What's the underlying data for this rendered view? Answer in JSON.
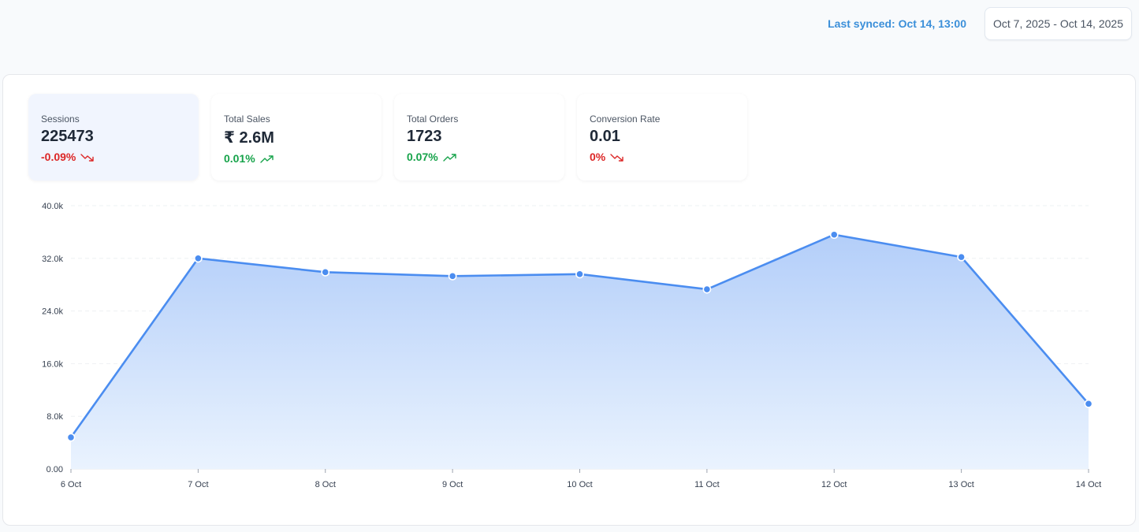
{
  "header": {
    "last_synced": "Last synced: Oct 14, 13:00",
    "date_range": "Oct 7, 2025 - Oct 14, 2025"
  },
  "kpis": [
    {
      "label": "Sessions",
      "value": "225473",
      "delta": "-0.09%",
      "trend": "down",
      "icon": "trend-down-icon",
      "active": true
    },
    {
      "label": "Total Sales",
      "value": "₹ 2.6M",
      "delta": "0.01%",
      "trend": "up",
      "icon": "trend-up-icon",
      "active": false
    },
    {
      "label": "Total Orders",
      "value": "1723",
      "delta": "0.07%",
      "trend": "up",
      "icon": "trend-up-icon",
      "active": false
    },
    {
      "label": "Conversion Rate",
      "value": "0.01",
      "delta": "0%",
      "trend": "down",
      "icon": "trend-down-icon",
      "active": false
    }
  ],
  "colors": {
    "accent": "#3b8fd9",
    "line": "#4b8df0",
    "area_top": "#b3cef9",
    "area_bottom": "#eaf3fe",
    "down": "#dc2626",
    "up": "#16a34a"
  },
  "chart_data": {
    "type": "area",
    "categories": [
      "6 Oct",
      "7 Oct",
      "8 Oct",
      "9 Oct",
      "10 Oct",
      "11 Oct",
      "12 Oct",
      "13 Oct",
      "14 Oct"
    ],
    "series": [
      {
        "values": [
          4800,
          32000,
          29900,
          29300,
          29600,
          27300,
          35600,
          32200,
          9900
        ]
      }
    ],
    "yticks": [
      "0.00",
      "8.0k",
      "16.0k",
      "24.0k",
      "32.0k",
      "40.0k"
    ],
    "ylim": [
      0,
      40000
    ],
    "grid": "horizontal dashed",
    "markers": true
  }
}
